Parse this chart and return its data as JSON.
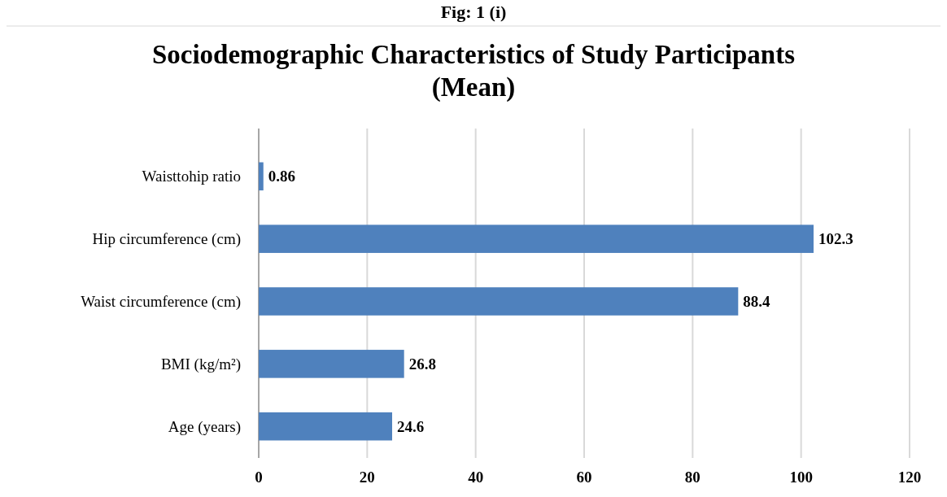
{
  "chart_data": {
    "type": "bar",
    "orientation": "horizontal",
    "title": "Sociodemographic Characteristics of Study Participants (Mean)",
    "annotations": [
      "Fig: 1 (i)"
    ],
    "categories": [
      "Waisttohip ratio",
      "Hip circumference (cm)",
      "Waist circumference (cm)",
      "BMI (kg/m²)",
      "Age (years)"
    ],
    "values": [
      0.86,
      102.3,
      88.4,
      26.8,
      24.6
    ],
    "color": "#4f81bd",
    "xlim": [
      0,
      120
    ],
    "xticks": [
      0,
      20,
      40,
      60,
      80,
      100,
      120
    ],
    "grid": "x",
    "data_labels": true
  }
}
